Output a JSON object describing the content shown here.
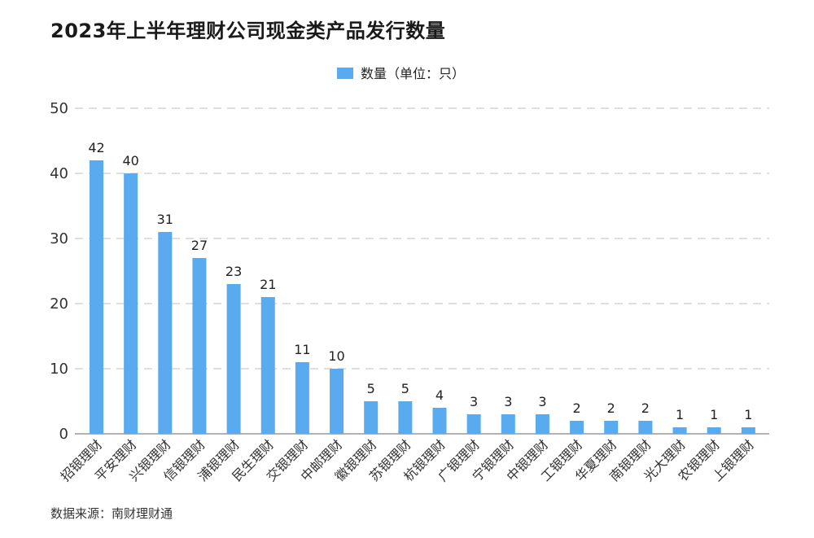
{
  "chart_data": {
    "type": "bar",
    "title": "2023年上半年理财公司现金类产品发行数量",
    "series_name": "数量（单位：只）",
    "categories": [
      "招银理财",
      "平安理财",
      "兴银理财",
      "信银理财",
      "浦银理财",
      "民生理财",
      "交银理财",
      "中邮理财",
      "徽银理财",
      "苏银理财",
      "杭银理财",
      "广银理财",
      "宁银理财",
      "中银理财",
      "工银理财",
      "华夏理财",
      "南银理财",
      "光大理财",
      "农银理财",
      "上银理财"
    ],
    "values": [
      42,
      40,
      31,
      27,
      23,
      21,
      11,
      10,
      5,
      5,
      4,
      3,
      3,
      3,
      2,
      2,
      2,
      1,
      1,
      1
    ],
    "ylim": [
      0,
      50
    ],
    "yticks": [
      0,
      10,
      20,
      30,
      40,
      50
    ],
    "legend_position": "top-center",
    "grid": true
  },
  "colors": {
    "bar": "#5aaaf0",
    "grid": "#cccccc",
    "axis": "#999999"
  },
  "source": "数据来源：南财理财通"
}
